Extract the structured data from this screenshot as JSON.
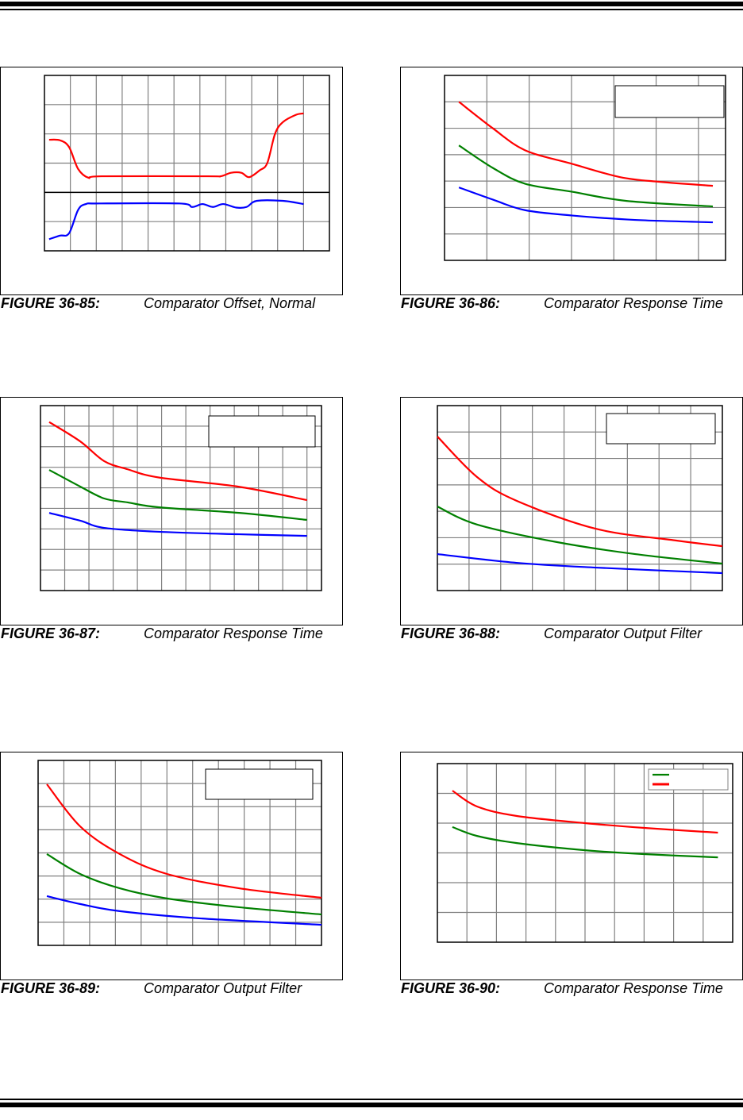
{
  "figures": [
    {
      "number": "FIGURE 36-85:",
      "title": "Comparator Offset, Normal"
    },
    {
      "number": "FIGURE 36-86:",
      "title": "Comparator Response Time"
    },
    {
      "number": "FIGURE 36-87:",
      "title": "Comparator Response Time"
    },
    {
      "number": "FIGURE 36-88:",
      "title": "Comparator Output Filter"
    },
    {
      "number": "FIGURE 36-89:",
      "title": "Comparator Output Filter"
    },
    {
      "number": "FIGURE 36-90:",
      "title": "Comparator Response Time"
    }
  ],
  "chart_data": [
    {
      "type": "line",
      "title": "Comparator Offset, Normal",
      "xlim": [
        0,
        11
      ],
      "ylim": [
        0,
        6
      ],
      "grid": true,
      "zero_line_y": 2,
      "legend": "none",
      "series": [
        {
          "name": "red",
          "color": "#ff0000",
          "points": [
            [
              0.18,
              3.8
            ],
            [
              0.6,
              3.78
            ],
            [
              0.95,
              3.55
            ],
            [
              1.3,
              2.8
            ],
            [
              1.7,
              2.5
            ],
            [
              2.2,
              2.55
            ],
            [
              6.3,
              2.55
            ],
            [
              6.8,
              2.55
            ],
            [
              7.2,
              2.67
            ],
            [
              7.6,
              2.67
            ],
            [
              7.9,
              2.52
            ],
            [
              8.3,
              2.75
            ],
            [
              8.6,
              3.0
            ],
            [
              8.9,
              4.0
            ],
            [
              9.2,
              4.4
            ],
            [
              9.7,
              4.65
            ],
            [
              10.0,
              4.7
            ]
          ]
        },
        {
          "name": "blue",
          "color": "#0000ff",
          "points": [
            [
              0.18,
              0.4
            ],
            [
              0.6,
              0.52
            ],
            [
              0.95,
              0.6
            ],
            [
              1.3,
              1.4
            ],
            [
              1.6,
              1.6
            ],
            [
              2.1,
              1.62
            ],
            [
              5.2,
              1.62
            ],
            [
              5.7,
              1.5
            ],
            [
              6.1,
              1.6
            ],
            [
              6.5,
              1.5
            ],
            [
              6.9,
              1.6
            ],
            [
              7.4,
              1.48
            ],
            [
              7.8,
              1.5
            ],
            [
              8.2,
              1.71
            ],
            [
              9.2,
              1.71
            ],
            [
              10.0,
              1.6
            ]
          ]
        }
      ]
    },
    {
      "type": "line",
      "title": "Comparator Response Time",
      "xlim": [
        0,
        6.64
      ],
      "ylim": [
        0,
        7
      ],
      "grid": true,
      "legend": "top-right",
      "series": [
        {
          "name": "red",
          "color": "#ff0000",
          "points": [
            [
              0.34,
              6.0
            ],
            [
              1.14,
              5.0
            ],
            [
              1.9,
              4.17
            ],
            [
              3.0,
              3.66
            ],
            [
              4.15,
              3.15
            ],
            [
              5.1,
              2.97
            ],
            [
              6.34,
              2.82
            ]
          ]
        },
        {
          "name": "green",
          "color": "#008000",
          "points": [
            [
              0.34,
              4.35
            ],
            [
              1.14,
              3.5
            ],
            [
              1.9,
              2.9
            ],
            [
              3.0,
              2.6
            ],
            [
              4.3,
              2.25
            ],
            [
              6.34,
              2.04
            ]
          ]
        },
        {
          "name": "blue",
          "color": "#0000ff",
          "points": [
            [
              0.34,
              2.76
            ],
            [
              1.14,
              2.3
            ],
            [
              1.9,
              1.9
            ],
            [
              3.0,
              1.7
            ],
            [
              4.5,
              1.53
            ],
            [
              6.34,
              1.44
            ]
          ]
        }
      ]
    },
    {
      "type": "line",
      "title": "Comparator Response Time",
      "xlim": [
        0,
        11.6
      ],
      "ylim": [
        0,
        9
      ],
      "grid": true,
      "legend": "top-right",
      "series": [
        {
          "name": "red",
          "color": "#ff0000",
          "points": [
            [
              0.36,
              8.2
            ],
            [
              1.64,
              7.26
            ],
            [
              2.63,
              6.3
            ],
            [
              3.6,
              5.9
            ],
            [
              4.9,
              5.5
            ],
            [
              8.2,
              5.05
            ],
            [
              11,
              4.4
            ]
          ]
        },
        {
          "name": "green",
          "color": "#008000",
          "points": [
            [
              0.36,
              5.87
            ],
            [
              1.64,
              5.06
            ],
            [
              2.63,
              4.48
            ],
            [
              3.6,
              4.29
            ],
            [
              4.9,
              4.05
            ],
            [
              8.2,
              3.78
            ],
            [
              11,
              3.44
            ]
          ]
        },
        {
          "name": "blue",
          "color": "#0000ff",
          "points": [
            [
              0.36,
              3.78
            ],
            [
              1.64,
              3.4
            ],
            [
              2.63,
              3.05
            ],
            [
              4.9,
              2.86
            ],
            [
              8.2,
              2.74
            ],
            [
              11,
              2.66
            ]
          ]
        }
      ]
    },
    {
      "type": "line",
      "title": "Comparator Output Filter",
      "xlim": [
        0,
        9
      ],
      "ylim": [
        0,
        7
      ],
      "grid": true,
      "legend": "top-right",
      "series": [
        {
          "name": "red",
          "color": "#ff0000",
          "points": [
            [
              0,
              5.83
            ],
            [
              1.25,
              4.3
            ],
            [
              2.5,
              3.4
            ],
            [
              5,
              2.34
            ],
            [
              7.5,
              1.9
            ],
            [
              9,
              1.68
            ]
          ]
        },
        {
          "name": "green",
          "color": "#008000",
          "points": [
            [
              0,
              3.18
            ],
            [
              1.25,
              2.5
            ],
            [
              3.75,
              1.84
            ],
            [
              6.25,
              1.38
            ],
            [
              9,
              1.02
            ]
          ]
        },
        {
          "name": "blue",
          "color": "#0000ff",
          "points": [
            [
              0,
              1.38
            ],
            [
              2.5,
              1.05
            ],
            [
              5,
              0.87
            ],
            [
              9,
              0.66
            ]
          ]
        }
      ]
    },
    {
      "type": "line",
      "title": "Comparator Output Filter",
      "xlim": [
        0,
        11
      ],
      "ylim": [
        0,
        8
      ],
      "grid": true,
      "legend": "top-right",
      "series": [
        {
          "name": "red",
          "color": "#ff0000",
          "points": [
            [
              0.34,
              6.97
            ],
            [
              1.63,
              5.15
            ],
            [
              3.17,
              3.95
            ],
            [
              5,
              3.09
            ],
            [
              7.8,
              2.47
            ],
            [
              11,
              2.06
            ]
          ]
        },
        {
          "name": "green",
          "color": "#008000",
          "points": [
            [
              0.34,
              3.95
            ],
            [
              1.63,
              3.09
            ],
            [
              3.17,
              2.47
            ],
            [
              5,
              2.03
            ],
            [
              7.8,
              1.65
            ],
            [
              11,
              1.34
            ]
          ]
        },
        {
          "name": "blue",
          "color": "#0000ff",
          "points": [
            [
              0.34,
              2.13
            ],
            [
              1.63,
              1.79
            ],
            [
              3.17,
              1.48
            ],
            [
              6.25,
              1.17
            ],
            [
              11,
              0.89
            ]
          ]
        }
      ]
    },
    {
      "type": "line",
      "title": "Comparator Response Time",
      "xlim": [
        0,
        10
      ],
      "ylim": [
        0,
        6
      ],
      "grid": true,
      "legend": "top-right",
      "series": [
        {
          "name": "red",
          "color": "#ff0000",
          "points": [
            [
              0.51,
              5.09
            ],
            [
              1.34,
              4.56
            ],
            [
              2.69,
              4.24
            ],
            [
              5,
              4.0
            ],
            [
              7,
              3.84
            ],
            [
              9.5,
              3.68
            ]
          ]
        },
        {
          "name": "green",
          "color": "#008000",
          "points": [
            [
              0.51,
              3.87
            ],
            [
              1.34,
              3.57
            ],
            [
              2.69,
              3.33
            ],
            [
              5,
              3.09
            ],
            [
              7,
              2.96
            ],
            [
              9.5,
              2.85
            ]
          ]
        }
      ]
    }
  ]
}
